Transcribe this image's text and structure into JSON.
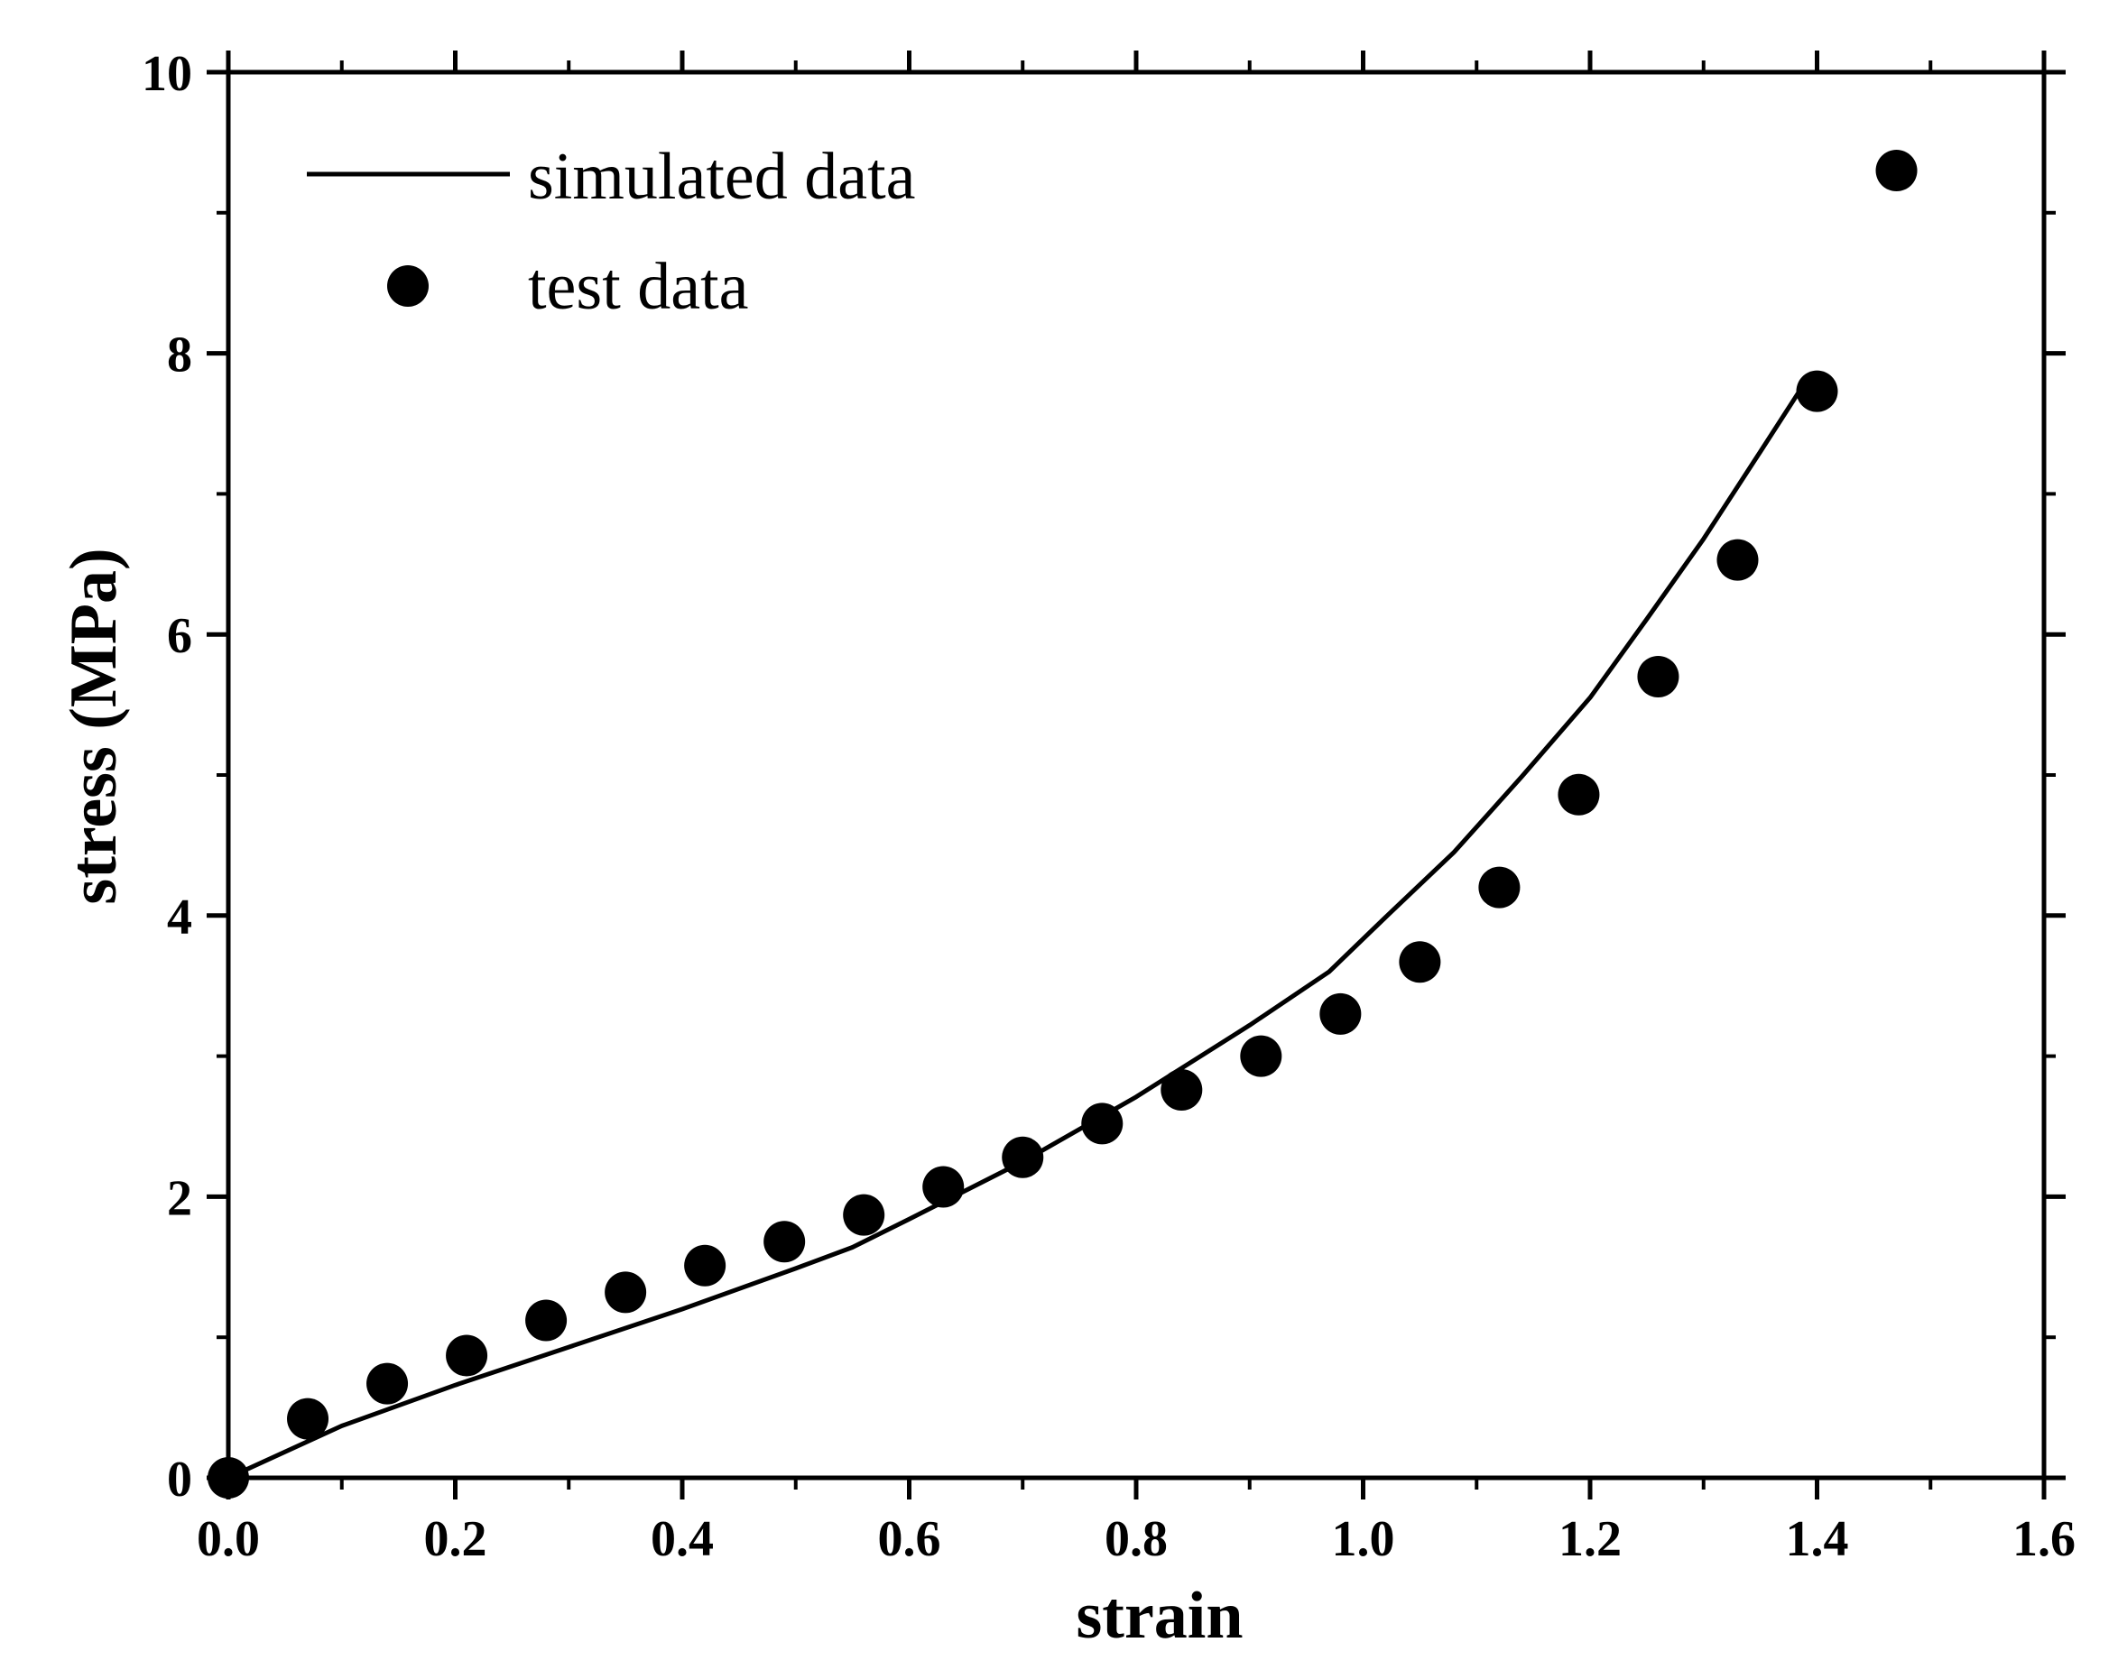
{
  "chart_data": {
    "type": "line",
    "title": "",
    "xlabel": "strain",
    "ylabel": "stress (MPa)",
    "xlim": [
      0.0,
      1.6
    ],
    "ylim": [
      0,
      10
    ],
    "x_ticks": [
      "0.0",
      "0.2",
      "0.4",
      "0.6",
      "0.8",
      "1.0",
      "1.2",
      "1.4",
      "1.6"
    ],
    "y_ticks": [
      "0",
      "2",
      "4",
      "6",
      "8",
      "10"
    ],
    "grid": false,
    "legend_position": "top-left",
    "series": [
      {
        "name": "simulated data",
        "style": "line",
        "color": "#000000",
        "x": [
          0.0,
          0.1,
          0.2,
          0.3,
          0.4,
          0.5,
          0.55,
          0.6,
          0.7,
          0.8,
          0.9,
          0.97,
          1.02,
          1.08,
          1.14,
          1.2,
          1.25,
          1.3,
          1.35,
          1.39
        ],
        "y": [
          0.0,
          0.37,
          0.66,
          0.93,
          1.2,
          1.49,
          1.64,
          1.84,
          2.25,
          2.71,
          3.22,
          3.6,
          3.99,
          4.45,
          4.99,
          5.55,
          6.11,
          6.68,
          7.3,
          7.8
        ]
      },
      {
        "name": "test data",
        "style": "scatter",
        "color": "#000000",
        "x": [
          0.0,
          0.07,
          0.14,
          0.21,
          0.28,
          0.35,
          0.42,
          0.49,
          0.56,
          0.63,
          0.7,
          0.77,
          0.84,
          0.91,
          0.98,
          1.05,
          1.12,
          1.19,
          1.26,
          1.33,
          1.4,
          1.47
        ],
        "y": [
          0.0,
          0.42,
          0.67,
          0.87,
          1.12,
          1.32,
          1.51,
          1.68,
          1.87,
          2.07,
          2.28,
          2.52,
          2.76,
          3.0,
          3.3,
          3.67,
          4.2,
          4.86,
          5.7,
          6.53,
          7.73,
          9.3
        ]
      }
    ]
  }
}
